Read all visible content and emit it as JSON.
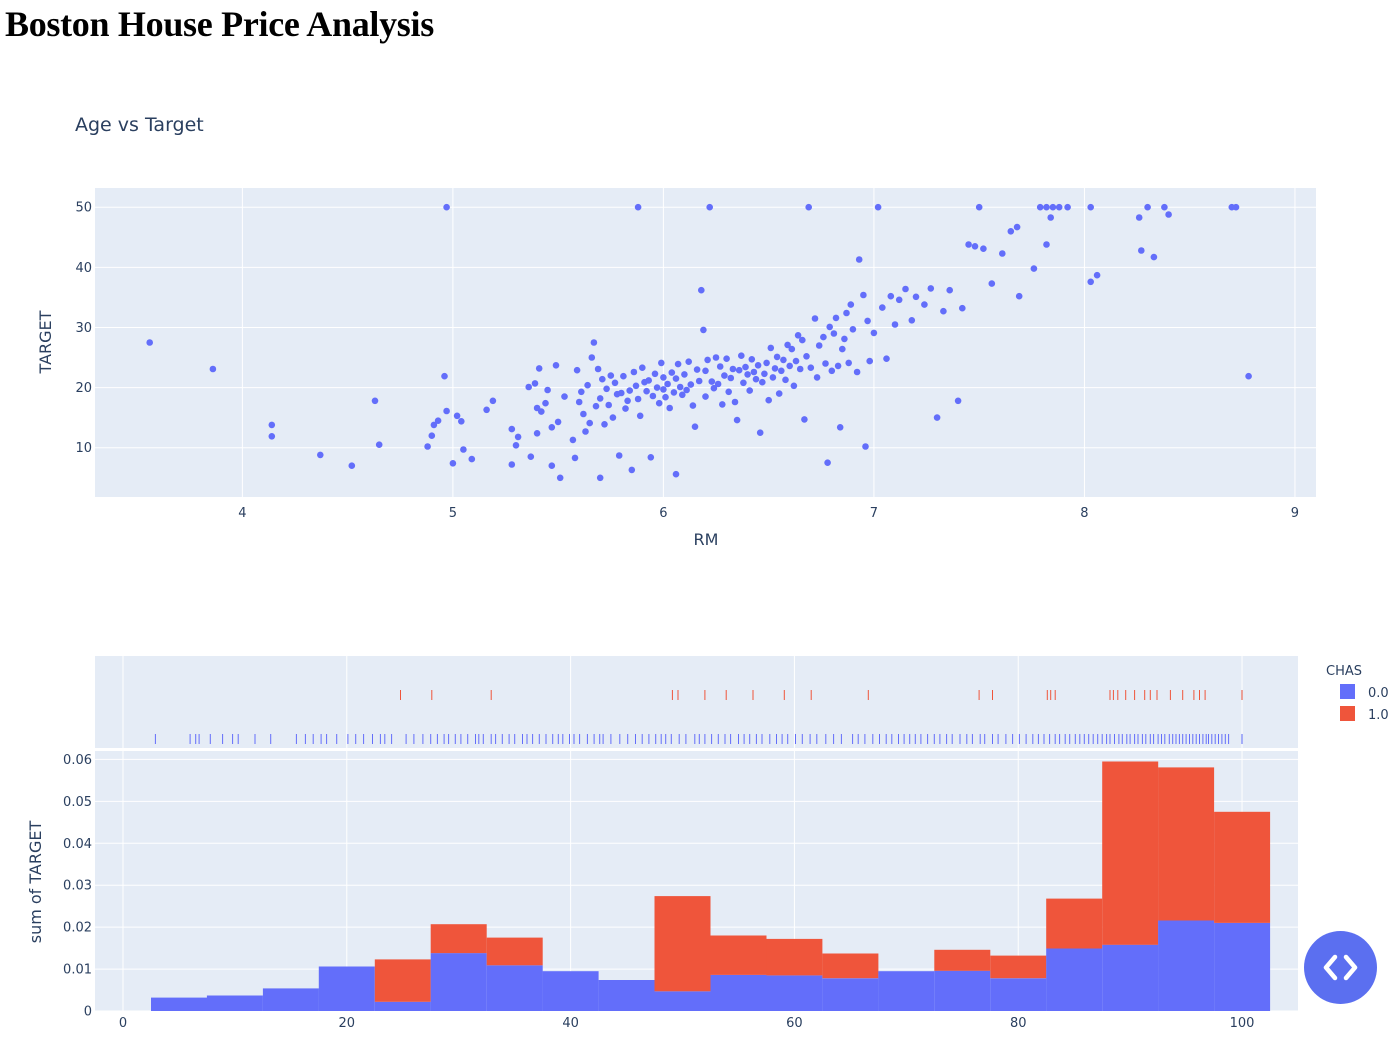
{
  "page_title": "Boston House Price Analysis",
  "nav_button_icon": "code-arrows-icon",
  "chart_data": [
    {
      "type": "scatter",
      "title": "Age vs Target",
      "xlabel": "RM",
      "ylabel": "TARGET",
      "xlim": [
        3.3,
        9.1
      ],
      "ylim": [
        1.8,
        53.2
      ],
      "xticks": [
        "4",
        "5",
        "6",
        "7",
        "8",
        "9"
      ],
      "yticks": [
        "10",
        "20",
        "30",
        "40",
        "50"
      ],
      "marker_color": "#636efa",
      "grid": true,
      "background": "#e5ecf6",
      "points": [
        [
          3.56,
          27.5
        ],
        [
          3.86,
          23.1
        ],
        [
          4.14,
          13.8
        ],
        [
          4.14,
          11.9
        ],
        [
          4.37,
          8.8
        ],
        [
          4.52,
          7.0
        ],
        [
          4.63,
          17.8
        ],
        [
          4.65,
          10.5
        ],
        [
          4.88,
          10.2
        ],
        [
          4.9,
          12.0
        ],
        [
          4.91,
          13.8
        ],
        [
          4.93,
          14.5
        ],
        [
          4.96,
          21.9
        ],
        [
          4.97,
          16.1
        ],
        [
          4.97,
          50.0
        ],
        [
          5.0,
          7.4
        ],
        [
          5.02,
          15.3
        ],
        [
          5.04,
          14.4
        ],
        [
          5.05,
          9.7
        ],
        [
          5.09,
          8.1
        ],
        [
          5.16,
          16.3
        ],
        [
          5.19,
          17.8
        ],
        [
          5.28,
          13.1
        ],
        [
          5.28,
          7.2
        ],
        [
          5.3,
          10.4
        ],
        [
          5.31,
          11.8
        ],
        [
          5.36,
          20.1
        ],
        [
          5.37,
          8.5
        ],
        [
          5.39,
          20.7
        ],
        [
          5.4,
          16.6
        ],
        [
          5.4,
          12.4
        ],
        [
          5.41,
          23.2
        ],
        [
          5.42,
          16.0
        ],
        [
          5.44,
          17.4
        ],
        [
          5.45,
          19.6
        ],
        [
          5.47,
          7.0
        ],
        [
          5.47,
          13.4
        ],
        [
          5.49,
          23.7
        ],
        [
          5.5,
          14.3
        ],
        [
          5.51,
          5.0
        ],
        [
          5.53,
          18.5
        ],
        [
          5.57,
          11.3
        ],
        [
          5.58,
          8.3
        ],
        [
          5.59,
          22.9
        ],
        [
          5.6,
          17.6
        ],
        [
          5.61,
          19.3
        ],
        [
          5.62,
          15.6
        ],
        [
          5.63,
          12.7
        ],
        [
          5.64,
          20.4
        ],
        [
          5.65,
          14.1
        ],
        [
          5.66,
          25.0
        ],
        [
          5.67,
          27.5
        ],
        [
          5.68,
          16.9
        ],
        [
          5.69,
          23.1
        ],
        [
          5.7,
          18.2
        ],
        [
          5.7,
          5.0
        ],
        [
          5.71,
          21.4
        ],
        [
          5.72,
          13.9
        ],
        [
          5.73,
          19.8
        ],
        [
          5.74,
          17.1
        ],
        [
          5.75,
          22.0
        ],
        [
          5.76,
          15.0
        ],
        [
          5.77,
          20.8
        ],
        [
          5.78,
          18.9
        ],
        [
          5.79,
          8.7
        ],
        [
          5.8,
          19.1
        ],
        [
          5.81,
          21.9
        ],
        [
          5.82,
          16.5
        ],
        [
          5.83,
          17.8
        ],
        [
          5.84,
          19.5
        ],
        [
          5.85,
          6.3
        ],
        [
          5.86,
          22.6
        ],
        [
          5.87,
          20.3
        ],
        [
          5.88,
          50.0
        ],
        [
          5.88,
          18.1
        ],
        [
          5.89,
          15.3
        ],
        [
          5.9,
          23.3
        ],
        [
          5.91,
          20.9
        ],
        [
          5.92,
          19.4
        ],
        [
          5.93,
          21.2
        ],
        [
          5.94,
          8.4
        ],
        [
          5.95,
          18.6
        ],
        [
          5.96,
          22.3
        ],
        [
          5.97,
          20.0
        ],
        [
          5.98,
          17.4
        ],
        [
          5.99,
          24.1
        ],
        [
          6.0,
          19.7
        ],
        [
          6.0,
          21.7
        ],
        [
          6.01,
          18.4
        ],
        [
          6.02,
          20.6
        ],
        [
          6.03,
          16.6
        ],
        [
          6.04,
          22.5
        ],
        [
          6.05,
          19.2
        ],
        [
          6.06,
          21.5
        ],
        [
          6.06,
          5.6
        ],
        [
          6.07,
          23.9
        ],
        [
          6.08,
          20.1
        ],
        [
          6.09,
          18.8
        ],
        [
          6.1,
          22.2
        ],
        [
          6.11,
          19.6
        ],
        [
          6.12,
          24.3
        ],
        [
          6.13,
          20.5
        ],
        [
          6.14,
          17.0
        ],
        [
          6.15,
          13.5
        ],
        [
          6.16,
          23.0
        ],
        [
          6.17,
          21.1
        ],
        [
          6.18,
          36.2
        ],
        [
          6.19,
          29.6
        ],
        [
          6.2,
          22.8
        ],
        [
          6.2,
          18.5
        ],
        [
          6.21,
          24.6
        ],
        [
          6.22,
          50.0
        ],
        [
          6.23,
          21.0
        ],
        [
          6.24,
          19.9
        ],
        [
          6.25,
          25.0
        ],
        [
          6.26,
          20.6
        ],
        [
          6.27,
          23.5
        ],
        [
          6.28,
          17.2
        ],
        [
          6.29,
          22.0
        ],
        [
          6.3,
          24.8
        ],
        [
          6.31,
          19.3
        ],
        [
          6.32,
          21.6
        ],
        [
          6.33,
          23.1
        ],
        [
          6.34,
          17.6
        ],
        [
          6.35,
          14.6
        ],
        [
          6.36,
          22.9
        ],
        [
          6.37,
          25.3
        ],
        [
          6.38,
          20.8
        ],
        [
          6.39,
          23.4
        ],
        [
          6.4,
          22.2
        ],
        [
          6.41,
          19.5
        ],
        [
          6.42,
          24.7
        ],
        [
          6.43,
          22.6
        ],
        [
          6.44,
          21.4
        ],
        [
          6.45,
          23.7
        ],
        [
          6.46,
          12.5
        ],
        [
          6.47,
          20.9
        ],
        [
          6.48,
          22.3
        ],
        [
          6.49,
          24.1
        ],
        [
          6.5,
          17.9
        ],
        [
          6.51,
          26.6
        ],
        [
          6.52,
          21.7
        ],
        [
          6.53,
          23.2
        ],
        [
          6.54,
          25.1
        ],
        [
          6.55,
          19.0
        ],
        [
          6.56,
          22.8
        ],
        [
          6.57,
          24.6
        ],
        [
          6.58,
          21.3
        ],
        [
          6.59,
          27.1
        ],
        [
          6.6,
          23.6
        ],
        [
          6.61,
          26.4
        ],
        [
          6.62,
          20.3
        ],
        [
          6.63,
          24.4
        ],
        [
          6.64,
          28.7
        ],
        [
          6.65,
          23.1
        ],
        [
          6.66,
          27.9
        ],
        [
          6.67,
          14.7
        ],
        [
          6.68,
          25.2
        ],
        [
          6.69,
          50.0
        ],
        [
          6.7,
          23.3
        ],
        [
          6.72,
          31.5
        ],
        [
          6.73,
          21.7
        ],
        [
          6.74,
          27.0
        ],
        [
          6.76,
          28.4
        ],
        [
          6.77,
          24.0
        ],
        [
          6.78,
          7.5
        ],
        [
          6.79,
          30.1
        ],
        [
          6.8,
          22.8
        ],
        [
          6.81,
          29.0
        ],
        [
          6.82,
          31.6
        ],
        [
          6.83,
          23.6
        ],
        [
          6.84,
          13.4
        ],
        [
          6.85,
          26.4
        ],
        [
          6.86,
          28.1
        ],
        [
          6.87,
          32.4
        ],
        [
          6.88,
          24.1
        ],
        [
          6.89,
          33.8
        ],
        [
          6.9,
          29.7
        ],
        [
          6.92,
          22.6
        ],
        [
          6.93,
          41.3
        ],
        [
          6.95,
          35.4
        ],
        [
          6.96,
          10.2
        ],
        [
          6.97,
          31.1
        ],
        [
          6.98,
          24.4
        ],
        [
          7.0,
          29.1
        ],
        [
          7.02,
          50.0
        ],
        [
          7.04,
          33.3
        ],
        [
          7.06,
          24.8
        ],
        [
          7.08,
          35.2
        ],
        [
          7.1,
          30.5
        ],
        [
          7.12,
          34.6
        ],
        [
          7.15,
          36.4
        ],
        [
          7.18,
          31.2
        ],
        [
          7.2,
          35.1
        ],
        [
          7.24,
          33.8
        ],
        [
          7.27,
          36.5
        ],
        [
          7.3,
          15.0
        ],
        [
          7.33,
          32.7
        ],
        [
          7.36,
          36.2
        ],
        [
          7.4,
          17.8
        ],
        [
          7.42,
          33.2
        ],
        [
          7.45,
          43.8
        ],
        [
          7.48,
          43.5
        ],
        [
          7.5,
          50.0
        ],
        [
          7.52,
          43.1
        ],
        [
          7.56,
          37.3
        ],
        [
          7.61,
          42.3
        ],
        [
          7.65,
          46.0
        ],
        [
          7.68,
          46.7
        ],
        [
          7.69,
          35.2
        ],
        [
          7.76,
          39.8
        ],
        [
          7.79,
          50.0
        ],
        [
          7.82,
          43.8
        ],
        [
          7.82,
          50.0
        ],
        [
          7.84,
          48.3
        ],
        [
          7.85,
          50.0
        ],
        [
          7.88,
          50.0
        ],
        [
          7.92,
          50.0
        ],
        [
          8.03,
          50.0
        ],
        [
          8.03,
          37.6
        ],
        [
          8.06,
          38.7
        ],
        [
          8.26,
          48.3
        ],
        [
          8.27,
          42.8
        ],
        [
          8.3,
          50.0
        ],
        [
          8.33,
          41.7
        ],
        [
          8.38,
          50.0
        ],
        [
          8.4,
          48.8
        ],
        [
          8.7,
          50.0
        ],
        [
          8.72,
          50.0
        ],
        [
          8.78,
          21.9
        ]
      ]
    },
    {
      "type": "bar",
      "subtype": "stacked histogram with rug marginal",
      "xlabel": "",
      "ylabel": "sum of TARGET",
      "xlim": [
        -2.5,
        105
      ],
      "ylim": [
        0,
        0.062
      ],
      "xticks": [
        "0",
        "20",
        "40",
        "60",
        "80",
        "100"
      ],
      "yticks": [
        "0",
        "0.01",
        "0.02",
        "0.03",
        "0.04",
        "0.05",
        "0.06"
      ],
      "bin_starts": [
        2.5,
        7.5,
        12.5,
        17.5,
        22.5,
        27.5,
        32.5,
        37.5,
        42.5,
        47.5,
        52.5,
        57.5,
        62.5,
        67.5,
        72.5,
        77.5,
        82.5,
        87.5,
        92.5,
        97.5
      ],
      "bin_width": 5,
      "legend_title": "CHAS",
      "legend_position": "top-right",
      "series": [
        {
          "name": "0.0",
          "color": "#636efa",
          "values": [
            0.0032,
            0.0037,
            0.0054,
            0.0106,
            0.0022,
            0.0138,
            0.0109,
            0.0095,
            0.0074,
            0.0047,
            0.0086,
            0.0085,
            0.0078,
            0.0095,
            0.0096,
            0.0078,
            0.0149,
            0.0158,
            0.0216,
            0.021
          ]
        },
        {
          "name": "1.0",
          "color": "#ef553b",
          "values": [
            0,
            0,
            0,
            0,
            0.0101,
            0.0069,
            0.0066,
            0,
            0,
            0.0227,
            0.0094,
            0.0087,
            0.0059,
            0,
            0.005,
            0.0054,
            0.0119,
            0.0437,
            0.0365,
            0.0265
          ]
        }
      ],
      "rug": {
        "0.0": [
          2.9,
          6.0,
          6.5,
          6.8,
          7.8,
          8.9,
          9.8,
          10.3,
          11.8,
          13.2,
          15.5,
          16.3,
          17.0,
          17.7,
          18.2,
          19.1,
          20.1,
          20.8,
          21.5,
          22.3,
          23.0,
          23.4,
          24.0,
          25.3,
          26.0,
          26.8,
          27.5,
          28.1,
          28.7,
          29.1,
          29.7,
          30.2,
          30.8,
          31.5,
          31.8,
          32.2,
          32.9,
          33.3,
          33.9,
          34.5,
          35.0,
          35.7,
          36.1,
          36.6,
          37.2,
          37.8,
          38.4,
          38.9,
          39.3,
          39.9,
          40.3,
          40.8,
          41.5,
          42.1,
          42.6,
          42.9,
          43.6,
          44.4,
          45.1,
          45.8,
          46.4,
          47.0,
          47.6,
          48.1,
          48.5,
          49.0,
          49.7,
          50.3,
          51.1,
          51.5,
          52.0,
          52.6,
          53.2,
          53.8,
          54.3,
          55.0,
          55.5,
          56.0,
          56.6,
          57.1,
          57.8,
          58.4,
          58.9,
          59.4,
          60.1,
          60.7,
          61.4,
          62.0,
          62.8,
          63.5,
          64.2,
          65.2,
          65.7,
          66.3,
          67.0,
          67.6,
          68.2,
          68.7,
          69.3,
          69.8,
          70.3,
          70.8,
          71.3,
          71.9,
          72.5,
          73.0,
          73.6,
          74.1,
          74.8,
          75.4,
          75.9,
          76.6,
          77.0,
          77.7,
          78.2,
          78.9,
          79.5,
          80.1,
          80.7,
          81.3,
          81.8,
          82.3,
          82.8,
          83.3,
          83.7,
          84.2,
          84.6,
          85.1,
          85.5,
          85.9,
          86.3,
          86.7,
          87.1,
          87.5,
          87.9,
          88.2,
          88.6,
          89.0,
          89.3,
          89.7,
          90.0,
          90.4,
          90.7,
          91.1,
          91.4,
          91.8,
          92.1,
          92.5,
          92.8,
          93.1,
          93.5,
          93.8,
          94.1,
          94.4,
          94.7,
          95.0,
          95.3,
          95.6,
          95.9,
          96.2,
          96.5,
          96.8,
          97.0,
          97.3,
          97.6,
          97.9,
          98.2,
          98.5,
          98.8,
          100.0
        ],
        "1.0": [
          24.8,
          27.6,
          32.9,
          49.1,
          49.6,
          52.0,
          53.9,
          56.3,
          59.1,
          61.5,
          66.6,
          76.5,
          77.7,
          82.6,
          82.9,
          83.3,
          88.2,
          88.5,
          88.9,
          89.6,
          90.4,
          91.3,
          91.8,
          92.4,
          93.6,
          94.7,
          95.7,
          96.2,
          96.7,
          100.0
        ]
      }
    }
  ]
}
